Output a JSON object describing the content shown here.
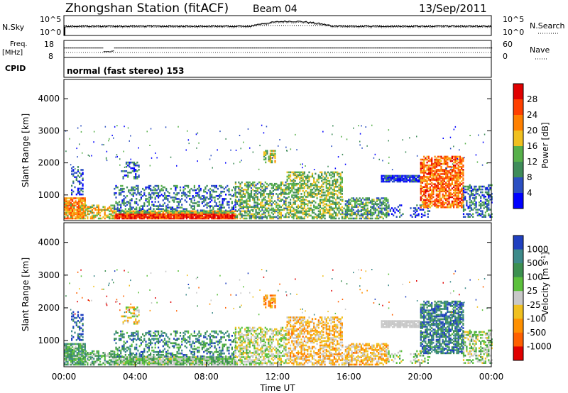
{
  "header": {
    "title": "Zhongshan Station (fitACF)",
    "beam": "Beam 04",
    "date": "13/Sep/2011"
  },
  "noise_panel": {
    "left_label": "N.Sky",
    "right_label": "N.Search",
    "left_ticks": [
      "10^5",
      "10^0"
    ],
    "right_ticks": [
      "10^5",
      "10^0"
    ]
  },
  "freq_panel": {
    "left_label_1": "Freq.",
    "left_label_2": "[MHz]",
    "left_ticks": [
      "18",
      "8"
    ],
    "right_label": "Nave",
    "right_ticks": [
      "60",
      "0"
    ]
  },
  "cpid_panel": {
    "label": "CPID",
    "mode_text": "normal (fast stereo) 153"
  },
  "colors": {
    "power_scale": [
      "#0000ff",
      "#2b4fc2",
      "#3f8c5a",
      "#57b04a",
      "#f0c020",
      "#ff8000",
      "#ff4000",
      "#e00000"
    ],
    "velocity_scale": [
      "#2040c0",
      "#3d8a8a",
      "#3c9050",
      "#5cc03c",
      "#c8c8c8",
      "#f0c020",
      "#ff9000",
      "#ff6000",
      "#e00000"
    ]
  },
  "chart_data": [
    {
      "type": "heatmap",
      "quantity": "power",
      "ylabel": "Slant Range [km]",
      "yticks": [
        "1000",
        "2000",
        "3000",
        "4000"
      ],
      "ylim": [
        200,
        4600
      ],
      "xlim": [
        0,
        24
      ],
      "colorbar_label": "Power [dB]",
      "colorbar_ticks": [
        "4",
        "8",
        "12",
        "16",
        "20",
        "24",
        "28"
      ],
      "colorbar_range": [
        0,
        32
      ]
    },
    {
      "type": "heatmap",
      "quantity": "velocity",
      "ylabel": "Slant Range [km]",
      "yticks": [
        "1000",
        "2000",
        "3000",
        "4000"
      ],
      "ylim": [
        200,
        4600
      ],
      "xlim": [
        0,
        24
      ],
      "xticks": [
        "00:00",
        "04:00",
        "08:00",
        "12:00",
        "16:00",
        "20:00",
        "00:00"
      ],
      "xlabel": "Time UT",
      "colorbar_label": "Velocity [m s",
      "colorbar_label_exp": "-1",
      "colorbar_label_end": "]",
      "colorbar_ticks": [
        "1000",
        "500",
        "100",
        "25",
        "-25",
        "-100",
        "-500",
        "-1000"
      ]
    }
  ]
}
